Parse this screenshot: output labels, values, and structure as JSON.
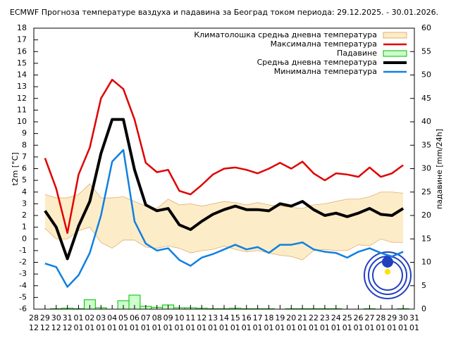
{
  "chart_data": {
    "type": "line",
    "title": "ECMWF Прогноза температуре ваздуха и падавина за Београд током периода: 29.12.2025. - 30.01.2026.",
    "y_label": "t2m [°C]",
    "y2_label": "падавине [mm/24h]",
    "categories": [
      "28",
      "29",
      "30",
      "31",
      "01",
      "02",
      "03",
      "04",
      "05",
      "06",
      "07",
      "08",
      "09",
      "10",
      "11",
      "12",
      "13",
      "14",
      "15",
      "16",
      "17",
      "18",
      "19",
      "20",
      "21",
      "22",
      "23",
      "24",
      "25",
      "26",
      "27",
      "28",
      "29",
      "30",
      "31"
    ],
    "category_months": [
      "12",
      "12",
      "12",
      "12",
      "01",
      "01",
      "01",
      "01",
      "01",
      "01",
      "01",
      "01",
      "01",
      "01",
      "01",
      "01",
      "01",
      "01",
      "01",
      "01",
      "01",
      "01",
      "01",
      "01",
      "01",
      "01",
      "01",
      "01",
      "01",
      "01",
      "01",
      "01",
      "01",
      "01",
      "01"
    ],
    "ylim": [
      -6,
      18
    ],
    "yticks": [
      -6,
      -5,
      -4,
      -3,
      -2,
      -1,
      0,
      1,
      2,
      3,
      4,
      5,
      6,
      7,
      8,
      9,
      10,
      11,
      12,
      13,
      14,
      15,
      16,
      17,
      18
    ],
    "y2lim": [
      0,
      60
    ],
    "y2ticks": [
      0,
      5,
      10,
      15,
      20,
      25,
      30,
      35,
      40,
      45,
      50,
      55,
      60
    ],
    "series": [
      {
        "name": "Климатолошка средња дневна температура",
        "color": "#fdecc8",
        "border": "#e0b070",
        "upper": [
          null,
          3.8,
          3.5,
          3.5,
          3.8,
          4.7,
          3.5,
          3.5,
          3.6,
          3.2,
          2.8,
          2.6,
          3.4,
          2.9,
          3.0,
          2.8,
          3.0,
          3.2,
          3.1,
          2.9,
          3.1,
          2.9,
          2.8,
          2.7,
          2.6,
          2.9,
          3.0,
          3.2,
          3.4,
          3.4,
          3.6,
          4.0,
          4.0,
          3.9,
          null
        ],
        "lower": [
          null,
          0.9,
          0.0,
          0.0,
          0.7,
          1.0,
          -0.3,
          -0.8,
          -0.1,
          -0.1,
          -0.7,
          -0.8,
          -0.6,
          -0.8,
          -1.2,
          -1.0,
          -0.9,
          -0.6,
          -0.9,
          -1.1,
          -1.0,
          -1.2,
          -1.4,
          -1.5,
          -1.8,
          -1.0,
          -0.9,
          -1.0,
          -1.0,
          -0.5,
          -0.6,
          0.0,
          -0.3,
          -0.3,
          null
        ]
      },
      {
        "name": "Максимална температура",
        "color": "#e00000",
        "width": 2.5,
        "values": [
          null,
          6.9,
          4.3,
          0.5,
          5.5,
          7.8,
          12.0,
          13.6,
          12.8,
          10.2,
          6.5,
          5.7,
          5.9,
          4.1,
          3.8,
          4.6,
          5.5,
          6.0,
          6.1,
          5.9,
          5.6,
          6.0,
          6.5,
          6.0,
          6.6,
          5.6,
          5.0,
          5.6,
          5.5,
          5.3,
          6.1,
          5.3,
          5.6,
          6.3,
          null
        ]
      },
      {
        "name": "Падавине",
        "color": "#ccffcc",
        "border": "#00bb00",
        "axis": "y2",
        "values": [
          null,
          0,
          0.1,
          0.2,
          0.1,
          2.0,
          0.3,
          0,
          1.8,
          3.0,
          0.6,
          0.4,
          0.9,
          0.3,
          0.3,
          0.2,
          0.1,
          0.1,
          0.2,
          0.1,
          0.1,
          0.1,
          0,
          0.1,
          0.1,
          0.1,
          0.1,
          0.1,
          0,
          0,
          0.1,
          0,
          0,
          0.1,
          null
        ]
      },
      {
        "name": "Средња дневна температура",
        "color": "#000000",
        "width": 4,
        "values": [
          null,
          2.4,
          1.0,
          -1.7,
          1.1,
          3.2,
          7.3,
          10.2,
          10.2,
          5.9,
          2.9,
          2.4,
          2.6,
          1.2,
          0.8,
          1.5,
          2.1,
          2.5,
          2.8,
          2.5,
          2.5,
          2.4,
          3.0,
          2.8,
          3.2,
          2.5,
          2.0,
          2.2,
          1.9,
          2.2,
          2.6,
          2.1,
          2.0,
          2.6,
          null
        ]
      },
      {
        "name": "Минимална температура",
        "color": "#1080e0",
        "width": 2.5,
        "values": [
          null,
          -2.1,
          -2.4,
          -4.1,
          -3.1,
          -1.2,
          2.0,
          6.6,
          7.6,
          1.5,
          -0.4,
          -1.0,
          -0.8,
          -1.8,
          -2.3,
          -1.6,
          -1.3,
          -0.9,
          -0.5,
          -0.9,
          -0.7,
          -1.2,
          -0.5,
          -0.5,
          -0.3,
          -0.9,
          -1.1,
          -1.2,
          -1.6,
          -1.1,
          -0.8,
          -1.2,
          -1.5,
          -1.1,
          null
        ]
      }
    ]
  }
}
